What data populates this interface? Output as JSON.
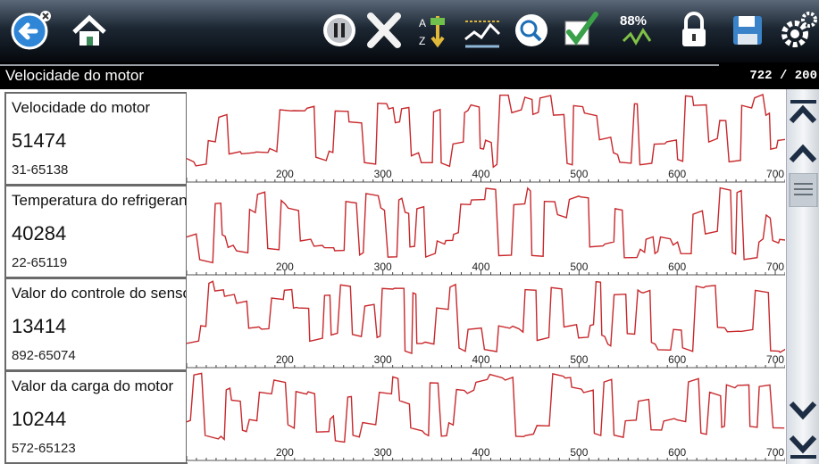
{
  "toolbar": {
    "buttons": [
      {
        "name": "back-icon"
      },
      {
        "name": "home-icon"
      },
      {
        "name": "pause-icon"
      },
      {
        "name": "close-icon"
      },
      {
        "name": "sort-icon"
      },
      {
        "name": "graph-icon"
      },
      {
        "name": "zoom-icon"
      },
      {
        "name": "check-icon"
      },
      {
        "name": "threshold-icon"
      },
      {
        "name": "lock-icon"
      },
      {
        "name": "save-icon"
      },
      {
        "name": "settings-icon"
      }
    ],
    "threshold_label": "88%"
  },
  "header": {
    "title": "Velocidade do motor",
    "counter": "722 / 200"
  },
  "graph_axis": {
    "ticks": [
      200,
      300,
      400,
      500,
      600,
      700
    ],
    "start": 100,
    "end": 710
  },
  "rows": [
    {
      "name": "Velocidade do motor",
      "value": "51474",
      "range": "31-65138"
    },
    {
      "name": "Temperatura do refrigerante",
      "value": "40284",
      "range": "22-65119"
    },
    {
      "name": "Valor do controle do sensor",
      "value": "13414",
      "range": "892-65074"
    },
    {
      "name": "Valor da carga do motor",
      "value": "10244",
      "range": "572-65123"
    }
  ],
  "colors": {
    "trace": "#c8282c",
    "toolbar": "#0b1118",
    "header": "#000000"
  },
  "scrollbar": {
    "icons": [
      "scroll-top-icon",
      "scroll-up-icon",
      "scroll-thumb-icon",
      "scroll-down-icon",
      "scroll-bottom-icon"
    ]
  }
}
